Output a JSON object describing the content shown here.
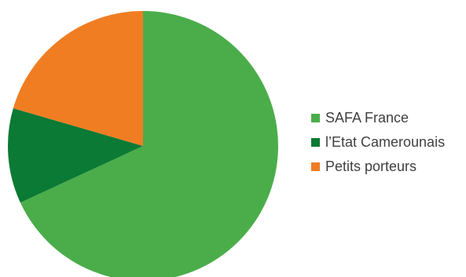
{
  "chart_data": {
    "type": "pie",
    "title": "",
    "series": [
      {
        "categories": [
          "SAFA France",
          "l’Etat Camerounais",
          "Petits porteurs"
        ],
        "values": [
          68.1,
          11.4,
          20.5
        ],
        "colors": [
          "#4aad4a",
          "#0b7a35",
          "#f07d22"
        ]
      }
    ],
    "legend": {
      "position": "right",
      "entries": [
        "SAFA France",
        "l’Etat Camerounais",
        "Petits porteurs"
      ]
    },
    "data_labels": false
  }
}
